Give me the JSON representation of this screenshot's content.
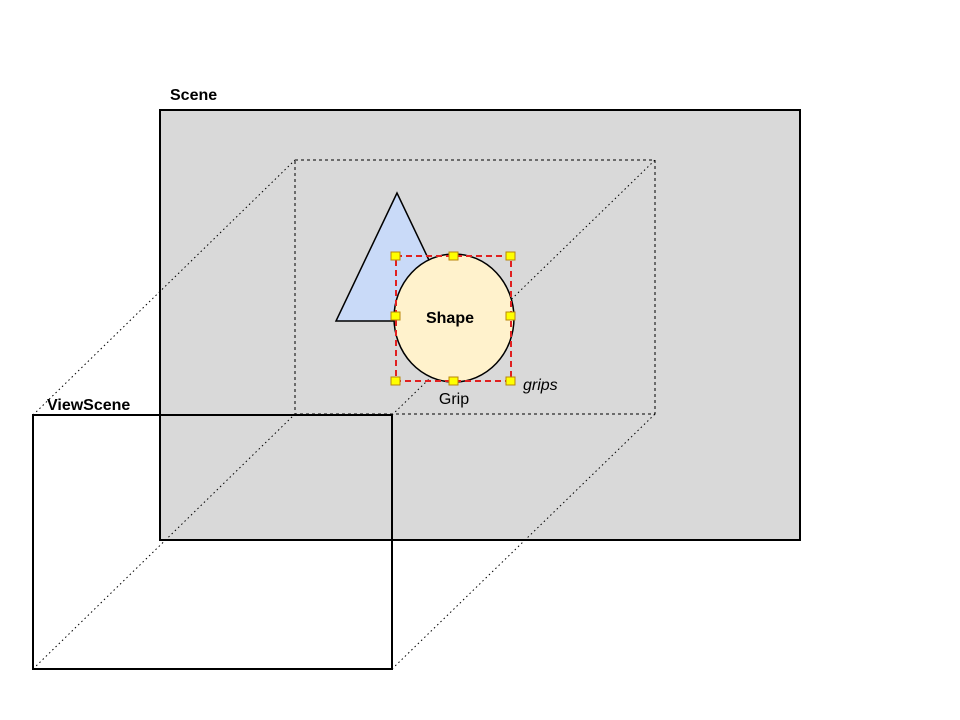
{
  "labels": {
    "scene": "Scene",
    "view_scene": "ViewScene",
    "shape": "Shape",
    "grip": "Grip",
    "grips": "grips"
  },
  "colors": {
    "scene_fill": "#d9d9d9",
    "triangle_fill": "#c9daf8",
    "circle_fill": "#fff2cc",
    "selection_border": "#e02020",
    "grip_fill": "#ffff00",
    "grip_stroke": "#b8860b",
    "line": "#000000"
  }
}
